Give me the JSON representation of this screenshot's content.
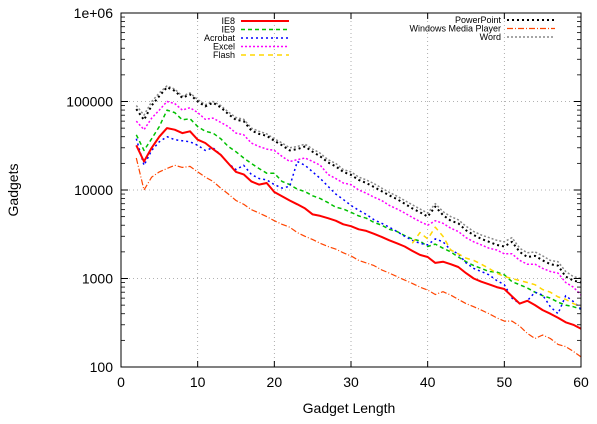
{
  "chart_data": {
    "type": "line",
    "title": "",
    "xlabel": "Gadget Length",
    "ylabel": "Gadgets",
    "xlim": [
      0,
      60
    ],
    "ylim": [
      100,
      1000000
    ],
    "yscale": "log",
    "grid": true,
    "xticks": [
      0,
      10,
      20,
      30,
      40,
      50,
      60
    ],
    "yticks": [
      100,
      1000,
      10000,
      100000,
      1000000
    ],
    "ytick_labels": [
      "100",
      "1000",
      "10000",
      "100000",
      "1e+06"
    ],
    "legend_placement": "top (two columns)",
    "x": [
      2,
      3,
      4,
      5,
      6,
      7,
      8,
      9,
      10,
      11,
      12,
      13,
      14,
      15,
      16,
      17,
      18,
      19,
      20,
      21,
      22,
      23,
      24,
      25,
      26,
      27,
      28,
      29,
      30,
      31,
      32,
      33,
      34,
      35,
      36,
      37,
      38,
      39,
      40,
      41,
      42,
      43,
      44,
      45,
      46,
      47,
      48,
      49,
      50,
      51,
      52,
      53,
      54,
      55,
      56,
      57,
      58,
      59,
      60
    ],
    "series": [
      {
        "name": "IE8",
        "color": "#ff0000",
        "dash": "",
        "width": 2,
        "values": [
          32000,
          21000,
          30000,
          40000,
          50000,
          48000,
          44000,
          46000,
          37000,
          34000,
          29000,
          25000,
          20000,
          16000,
          15000,
          12500,
          11500,
          12000,
          9500,
          8500,
          7600,
          6900,
          6200,
          5300,
          5100,
          4800,
          4500,
          4100,
          3900,
          3600,
          3450,
          3200,
          2950,
          2700,
          2500,
          2300,
          2050,
          1850,
          1750,
          1500,
          1550,
          1450,
          1350,
          1150,
          1000,
          920,
          860,
          800,
          760,
          630,
          520,
          560,
          500,
          440,
          400,
          360,
          320,
          300,
          270
        ]
      },
      {
        "name": "IE9",
        "color": "#00c000",
        "dash": "4 3",
        "width": 1.5,
        "values": [
          42000,
          28000,
          38000,
          52000,
          80000,
          75000,
          62000,
          64000,
          52000,
          46000,
          44000,
          38000,
          31000,
          27000,
          23000,
          20000,
          17500,
          15500,
          15500,
          12500,
          11500,
          10200,
          9600,
          8600,
          8000,
          7200,
          6400,
          6100,
          5600,
          5100,
          4800,
          4300,
          4000,
          3600,
          3400,
          3050,
          2800,
          2650,
          2300,
          2450,
          2200,
          2000,
          1750,
          1550,
          1400,
          1300,
          1200,
          1180,
          1100,
          920,
          850,
          780,
          700,
          640,
          600,
          540,
          500,
          480,
          450
        ]
      },
      {
        "name": "Acrobat",
        "color": "#0000ff",
        "dash": "2 3",
        "width": 1.5,
        "values": [
          38000,
          19000,
          28000,
          35000,
          40000,
          37000,
          36000,
          35000,
          32000,
          28000,
          30000,
          25000,
          20000,
          17000,
          19000,
          15000,
          13500,
          13000,
          11500,
          10500,
          11000,
          21000,
          19000,
          16000,
          13500,
          11000,
          9000,
          7800,
          6700,
          5900,
          5300,
          4600,
          4200,
          3800,
          3400,
          3000,
          2700,
          2500,
          2400,
          2800,
          2600,
          2100,
          1900,
          1500,
          1300,
          1200,
          1100,
          950,
          850,
          600,
          520,
          560,
          700,
          650,
          480,
          400,
          640,
          550,
          450
        ]
      },
      {
        "name": "Excel",
        "color": "#ff00ff",
        "dash": "2 2",
        "width": 1.5,
        "values": [
          60000,
          48000,
          65000,
          80000,
          100000,
          95000,
          80000,
          85000,
          75000,
          63000,
          65000,
          58000,
          52000,
          44000,
          42000,
          34000,
          31000,
          29000,
          28000,
          24000,
          21000,
          22000,
          23000,
          21000,
          19000,
          15000,
          13500,
          12000,
          11500,
          10000,
          9200,
          8300,
          7600,
          6700,
          6100,
          5500,
          4900,
          4400,
          4000,
          4500,
          4200,
          3700,
          3400,
          2900,
          2600,
          2400,
          2200,
          2100,
          1900,
          1900,
          1600,
          1450,
          1450,
          1300,
          1200,
          1150,
          900,
          800,
          650
        ]
      },
      {
        "name": "Flash",
        "color": "#ffd700",
        "dash": "5 4",
        "width": 1.5,
        "values": [
          null,
          null,
          null,
          null,
          null,
          null,
          null,
          null,
          null,
          null,
          null,
          null,
          null,
          null,
          null,
          null,
          null,
          null,
          null,
          null,
          null,
          null,
          null,
          null,
          null,
          null,
          null,
          null,
          null,
          null,
          null,
          null,
          null,
          null,
          null,
          null,
          2500,
          3300,
          2800,
          3800,
          3000,
          2100,
          1900,
          1700,
          1600,
          1450,
          1300,
          1150,
          1050,
          1000,
          950,
          900,
          850,
          750,
          700,
          620,
          580,
          520,
          480
        ]
      },
      {
        "name": "PowerPoint",
        "color": "#000000",
        "dash": "2 3",
        "width": 2,
        "values": [
          82000,
          62000,
          90000,
          115000,
          145000,
          132000,
          110000,
          120000,
          100000,
          88000,
          97000,
          86000,
          72000,
          62000,
          60000,
          47000,
          43000,
          41000,
          36000,
          32000,
          28000,
          29000,
          31000,
          27000,
          24000,
          20500,
          18500,
          16000,
          14800,
          13000,
          12000,
          10800,
          9700,
          8700,
          7900,
          7000,
          6200,
          5600,
          5000,
          6500,
          5200,
          4500,
          4200,
          3500,
          3100,
          2800,
          2600,
          2400,
          2300,
          2600,
          2000,
          1750,
          1800,
          1600,
          1450,
          1400,
          1050,
          950,
          900
        ]
      },
      {
        "name": "Windows Media Player",
        "color": "#ff4500",
        "dash": "6 2 1 2",
        "width": 1.2,
        "values": [
          23000,
          10000,
          14000,
          16000,
          17500,
          19000,
          18000,
          18500,
          16000,
          14000,
          12500,
          10500,
          9000,
          7600,
          6900,
          6000,
          5500,
          5000,
          4500,
          4100,
          3800,
          3300,
          3000,
          2750,
          2500,
          2300,
          2150,
          1950,
          1800,
          1600,
          1500,
          1400,
          1250,
          1150,
          1050,
          960,
          880,
          800,
          740,
          660,
          710,
          650,
          580,
          520,
          480,
          440,
          400,
          360,
          330,
          330,
          290,
          240,
          210,
          230,
          210,
          180,
          170,
          150,
          130
        ]
      },
      {
        "name": "Word",
        "color": "#888888",
        "dash": "2 2",
        "width": 1.5,
        "values": [
          90000,
          70000,
          100000,
          125000,
          150000,
          138000,
          115000,
          125000,
          105000,
          92000,
          100000,
          90000,
          76000,
          66000,
          63000,
          50000,
          46000,
          43000,
          38000,
          34000,
          30000,
          31000,
          33000,
          29000,
          26000,
          22000,
          20000,
          17000,
          16000,
          14000,
          13000,
          11800,
          10500,
          9400,
          8500,
          7600,
          6800,
          6100,
          5500,
          7000,
          5700,
          5000,
          4600,
          3900,
          3400,
          3100,
          2900,
          2700,
          2600,
          2900,
          2200,
          1950,
          2000,
          1800,
          1600,
          1550,
          1200,
          1050,
          1000
        ]
      }
    ]
  }
}
